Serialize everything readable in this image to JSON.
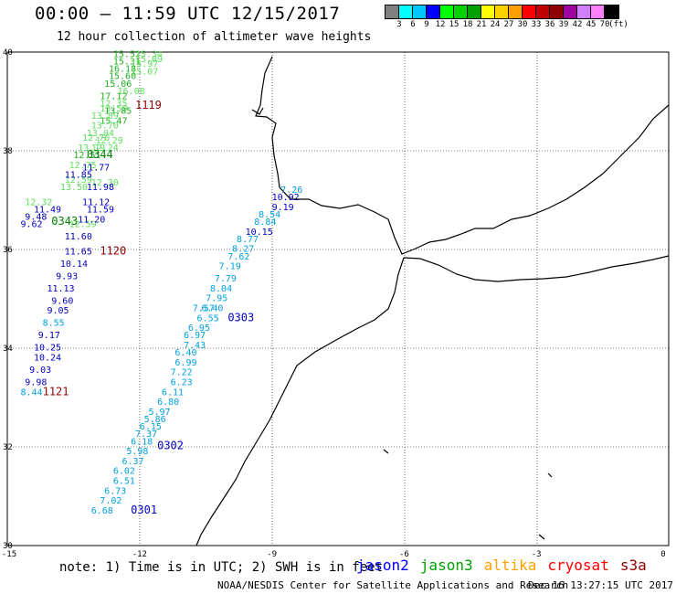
{
  "header": {
    "title": "00:00 – 11:59 UTC 12/15/2017",
    "subtitle": "12 hour collection of altimeter wave heights"
  },
  "colorbar": {
    "colors": [
      "#808080",
      "#00ffff",
      "#00c8ff",
      "#0000ff",
      "#00ff00",
      "#00d000",
      "#00a000",
      "#ffff00",
      "#ffd000",
      "#ffa000",
      "#ff0000",
      "#c00000",
      "#900000",
      "#a000a0",
      "#d080ff",
      "#ff80ff",
      "#000000"
    ],
    "labels": [
      "3",
      "6",
      "9",
      "12",
      "15",
      "18",
      "21",
      "24",
      "27",
      "30",
      "33",
      "36",
      "39",
      "42",
      "45",
      "70",
      "(ft)"
    ]
  },
  "map": {
    "lat_labels": [
      "40",
      "38",
      "36",
      "34",
      "32",
      "30"
    ],
    "lon_labels": [
      "-15",
      "-12",
      "-9",
      "-6",
      "-3",
      "0"
    ],
    "tracks": [
      {
        "name": "jason3",
        "color": "#50e050",
        "labels": [
          {
            "lon": -12.6,
            "lat": 39.9,
            "v": "15.52",
            "c": "#20b020"
          },
          {
            "lon": -12.1,
            "lat": 39.9,
            "v": "15.34",
            "c": "#60e060"
          },
          {
            "lon": -12.1,
            "lat": 39.8,
            "v": "15.09",
            "c": "#60e060"
          },
          {
            "lon": -12.6,
            "lat": 39.75,
            "v": "15.31",
            "c": "#20b020"
          },
          {
            "lon": -12.2,
            "lat": 39.7,
            "v": "15.97",
            "c": "#60e060"
          },
          {
            "lon": -12.7,
            "lat": 39.6,
            "v": "16.18",
            "c": "#20b020"
          },
          {
            "lon": -12.2,
            "lat": 39.55,
            "v": "15.07",
            "c": "#60e060"
          },
          {
            "lon": -12.7,
            "lat": 39.45,
            "v": "15.60",
            "c": "#20b020"
          },
          {
            "lon": -12.8,
            "lat": 39.3,
            "v": "15.06",
            "c": "#20b020"
          },
          {
            "lon": -12.5,
            "lat": 39.15,
            "v": "16.08",
            "c": "#60e060"
          },
          {
            "lon": -12.9,
            "lat": 39.05,
            "v": "17.12",
            "c": "#20b020"
          },
          {
            "lon": -12.9,
            "lat": 38.9,
            "v": "12.35",
            "c": "#60e060"
          },
          {
            "lon": -12.9,
            "lat": 38.8,
            "v": "13.59",
            "c": "#60e060"
          },
          {
            "lon": -12.8,
            "lat": 38.75,
            "v": "13.85",
            "c": "#20b020"
          },
          {
            "lon": -13.1,
            "lat": 38.65,
            "v": "13.89",
            "c": "#60e060"
          },
          {
            "lon": -12.9,
            "lat": 38.55,
            "v": "15.47",
            "c": "#20b020"
          },
          {
            "lon": -13.1,
            "lat": 38.45,
            "v": "13.70",
            "c": "#60e060"
          },
          {
            "lon": -13.2,
            "lat": 38.3,
            "v": "13.04",
            "c": "#60e060"
          },
          {
            "lon": -13.3,
            "lat": 38.2,
            "v": "12.70",
            "c": "#60e060"
          },
          {
            "lon": -13.0,
            "lat": 38.15,
            "v": "12.29",
            "c": "#60e060"
          },
          {
            "lon": -13.4,
            "lat": 38.0,
            "v": "13.19",
            "c": "#60e060"
          },
          {
            "lon": -13.1,
            "lat": 38.0,
            "v": "12.24",
            "c": "#60e060"
          },
          {
            "lon": -13.5,
            "lat": 37.85,
            "v": "12.51",
            "c": "#20b020"
          },
          {
            "lon": -13.6,
            "lat": 37.65,
            "v": "12.75",
            "c": "#60e060"
          },
          {
            "lon": -13.7,
            "lat": 37.35,
            "v": "12.59",
            "c": "#60e060"
          },
          {
            "lon": -13.1,
            "lat": 37.3,
            "v": "12.30",
            "c": "#60e060"
          },
          {
            "lon": -13.8,
            "lat": 37.2,
            "v": "13.50",
            "c": "#60e060"
          },
          {
            "lon": -14.6,
            "lat": 36.9,
            "v": "12.32",
            "c": "#60e060"
          },
          {
            "lon": -13.6,
            "lat": 36.45,
            "v": "12.59",
            "c": "#60e060"
          }
        ]
      },
      {
        "name": "jason2",
        "color": "#0000c0",
        "labels": [
          {
            "lon": -13.3,
            "lat": 37.6,
            "v": "11.77",
            "c": "#0000c0"
          },
          {
            "lon": -13.7,
            "lat": 37.45,
            "v": "11.85",
            "c": "#0000c0"
          },
          {
            "lon": -13.2,
            "lat": 37.2,
            "v": "11.98",
            "c": "#0000c0"
          },
          {
            "lon": -13.3,
            "lat": 36.9,
            "v": "11.12",
            "c": "#0000c0"
          },
          {
            "lon": -14.4,
            "lat": 36.75,
            "v": "11.49",
            "c": "#0000c0"
          },
          {
            "lon": -13.2,
            "lat": 36.75,
            "v": "11.59",
            "c": "#0000c0"
          },
          {
            "lon": -14.6,
            "lat": 36.6,
            "v": "9.48",
            "c": "#0000c0"
          },
          {
            "lon": -13.4,
            "lat": 36.55,
            "v": "11.20",
            "c": "#0000c0"
          },
          {
            "lon": -14.7,
            "lat": 36.45,
            "v": "9.62",
            "c": "#0000c0"
          },
          {
            "lon": -13.7,
            "lat": 36.2,
            "v": "11.60",
            "c": "#0000c0"
          },
          {
            "lon": -13.7,
            "lat": 35.9,
            "v": "11.65",
            "c": "#0000c0"
          },
          {
            "lon": -13.8,
            "lat": 35.65,
            "v": "10.14",
            "c": "#0000c0"
          },
          {
            "lon": -13.9,
            "lat": 35.4,
            "v": "9.93",
            "c": "#0000c0"
          },
          {
            "lon": -14.1,
            "lat": 35.15,
            "v": "11.13",
            "c": "#0000c0"
          },
          {
            "lon": -14.0,
            "lat": 34.9,
            "v": "9.60",
            "c": "#0000c0"
          },
          {
            "lon": -14.1,
            "lat": 34.7,
            "v": "9.05",
            "c": "#0000c0"
          },
          {
            "lon": -14.2,
            "lat": 34.45,
            "v": "8.55",
            "c": "#00a0e0"
          },
          {
            "lon": -14.3,
            "lat": 34.2,
            "v": "9.17",
            "c": "#0000c0"
          },
          {
            "lon": -14.4,
            "lat": 33.95,
            "v": "10.25",
            "c": "#0000c0"
          },
          {
            "lon": -14.4,
            "lat": 33.75,
            "v": "10.24",
            "c": "#0000c0"
          },
          {
            "lon": -14.5,
            "lat": 33.5,
            "v": "9.03",
            "c": "#0000c0"
          },
          {
            "lon": -14.6,
            "lat": 33.25,
            "v": "9.98",
            "c": "#0000c0"
          },
          {
            "lon": -14.7,
            "lat": 33.05,
            "v": "8.44",
            "c": "#00a0e0"
          }
        ]
      },
      {
        "name": "altika",
        "color": "#00a0e0",
        "labels": [
          {
            "lon": -8.8,
            "lat": 37.15,
            "v": "7.26",
            "c": "#00a0e0"
          },
          {
            "lon": -9.0,
            "lat": 37.0,
            "v": "10.92",
            "c": "#0000c0"
          },
          {
            "lon": -9.0,
            "lat": 36.8,
            "v": "9.19",
            "c": "#0000c0"
          },
          {
            "lon": -9.3,
            "lat": 36.65,
            "v": "8.54",
            "c": "#00a0e0"
          },
          {
            "lon": -9.4,
            "lat": 36.5,
            "v": "8.84",
            "c": "#00a0e0"
          },
          {
            "lon": -9.6,
            "lat": 36.3,
            "v": "10.15",
            "c": "#0000c0"
          },
          {
            "lon": -9.8,
            "lat": 36.15,
            "v": "8.77",
            "c": "#00a0e0"
          },
          {
            "lon": -9.9,
            "lat": 35.95,
            "v": "8.27",
            "c": "#00a0e0"
          },
          {
            "lon": -10.0,
            "lat": 35.8,
            "v": "7.62",
            "c": "#00a0e0"
          },
          {
            "lon": -10.2,
            "lat": 35.6,
            "v": "7.19",
            "c": "#00a0e0"
          },
          {
            "lon": -10.3,
            "lat": 35.35,
            "v": "7.79",
            "c": "#00a0e0"
          },
          {
            "lon": -10.4,
            "lat": 35.15,
            "v": "8.04",
            "c": "#00a0e0"
          },
          {
            "lon": -10.5,
            "lat": 34.95,
            "v": "7.95",
            "c": "#00a0e0"
          },
          {
            "lon": -10.6,
            "lat": 34.75,
            "v": "6.40",
            "c": "#00a0e0"
          },
          {
            "lon": -10.7,
            "lat": 34.55,
            "v": "6.55",
            "c": "#00a0e0"
          },
          {
            "lon": -10.8,
            "lat": 34.75,
            "v": "7.57",
            "c": "#00a0e0"
          },
          {
            "lon": -10.9,
            "lat": 34.35,
            "v": "6.95",
            "c": "#00a0e0"
          },
          {
            "lon": -11.0,
            "lat": 34.2,
            "v": "6.97",
            "c": "#00a0e0"
          },
          {
            "lon": -11.0,
            "lat": 34.0,
            "v": "7.43",
            "c": "#00a0e0"
          },
          {
            "lon": -11.2,
            "lat": 33.85,
            "v": "6.40",
            "c": "#00a0e0"
          },
          {
            "lon": -11.2,
            "lat": 33.65,
            "v": "6.99",
            "c": "#00a0e0"
          },
          {
            "lon": -11.3,
            "lat": 33.45,
            "v": "7.22",
            "c": "#00a0e0"
          },
          {
            "lon": -11.3,
            "lat": 33.25,
            "v": "6.23",
            "c": "#00a0e0"
          },
          {
            "lon": -11.5,
            "lat": 33.05,
            "v": "6.11",
            "c": "#00a0e0"
          },
          {
            "lon": -11.6,
            "lat": 32.85,
            "v": "6.80",
            "c": "#00a0e0"
          },
          {
            "lon": -11.8,
            "lat": 32.65,
            "v": "5.97",
            "c": "#00a0e0"
          },
          {
            "lon": -11.9,
            "lat": 32.5,
            "v": "5.86",
            "c": "#00a0e0"
          },
          {
            "lon": -12.0,
            "lat": 32.35,
            "v": "6.15",
            "c": "#00a0e0"
          },
          {
            "lon": -12.1,
            "lat": 32.2,
            "v": "7.37",
            "c": "#00a0e0"
          },
          {
            "lon": -12.2,
            "lat": 32.05,
            "v": "6.18",
            "c": "#00a0e0"
          },
          {
            "lon": -12.3,
            "lat": 31.85,
            "v": "5.98",
            "c": "#00a0e0"
          },
          {
            "lon": -12.4,
            "lat": 31.65,
            "v": "6.37",
            "c": "#00a0e0"
          },
          {
            "lon": -12.6,
            "lat": 31.45,
            "v": "6.02",
            "c": "#00a0e0"
          },
          {
            "lon": -12.6,
            "lat": 31.25,
            "v": "6.51",
            "c": "#00a0e0"
          },
          {
            "lon": -12.8,
            "lat": 31.05,
            "v": "6.73",
            "c": "#00a0e0"
          },
          {
            "lon": -12.9,
            "lat": 30.85,
            "v": "7.02",
            "c": "#00a0e0"
          },
          {
            "lon": -13.1,
            "lat": 30.65,
            "v": "6.68",
            "c": "#00a0e0"
          }
        ]
      }
    ],
    "time_labels": [
      {
        "lon": -12.1,
        "lat": 38.85,
        "v": "1119",
        "c": "#900000"
      },
      {
        "lon": -13.2,
        "lat": 37.85,
        "v": "0344",
        "c": "#008000"
      },
      {
        "lon": -14.0,
        "lat": 36.5,
        "v": "0343",
        "c": "#008000"
      },
      {
        "lon": -12.9,
        "lat": 35.9,
        "v": "1120",
        "c": "#900000"
      },
      {
        "lon": -10.0,
        "lat": 34.55,
        "v": "0303",
        "c": "#0000c0"
      },
      {
        "lon": -14.2,
        "lat": 33.05,
        "v": "1121",
        "c": "#900000"
      },
      {
        "lon": -11.6,
        "lat": 31.95,
        "v": "0302",
        "c": "#0000c0"
      },
      {
        "lon": -12.2,
        "lat": 30.65,
        "v": "0301",
        "c": "#0000c0"
      }
    ]
  },
  "footer": {
    "note": "note: 1) Time is in UTC; 2) SWH is in feet",
    "satellites": [
      {
        "name": "jason2",
        "color": "#0000ff"
      },
      {
        "name": "jason3",
        "color": "#00a000"
      },
      {
        "name": "altika",
        "color": "#ffa000"
      },
      {
        "name": "cryosat",
        "color": "#ff0000"
      },
      {
        "name": "s3a",
        "color": "#900000"
      }
    ],
    "credit": "NOAA/NESDIS Center for Satellite Applications and Research",
    "timestamp": "Dec 16 13:27:15 UTC 2017"
  }
}
